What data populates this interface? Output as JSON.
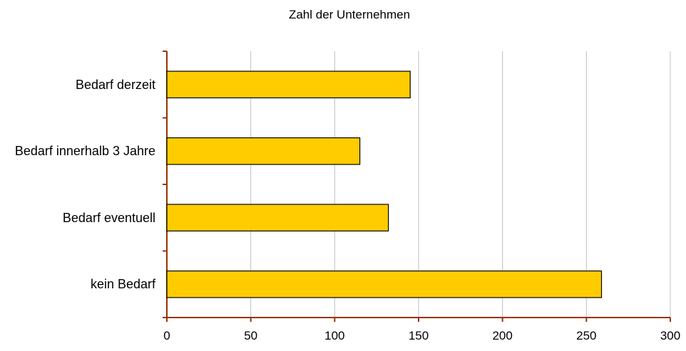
{
  "chart_data": {
    "type": "bar",
    "orientation": "horizontal",
    "title": "Zahl der Unternehmen",
    "categories": [
      "Bedarf derzeit",
      "Bedarf innerhalb 3 Jahre",
      "Bedarf eventuell",
      "kein Bedarf"
    ],
    "values": [
      145,
      115,
      132,
      259
    ],
    "color": "#ffcc00",
    "xlim": [
      0,
      300
    ],
    "xticks": [
      0,
      50,
      100,
      150,
      200,
      250,
      300
    ],
    "grid": true
  }
}
